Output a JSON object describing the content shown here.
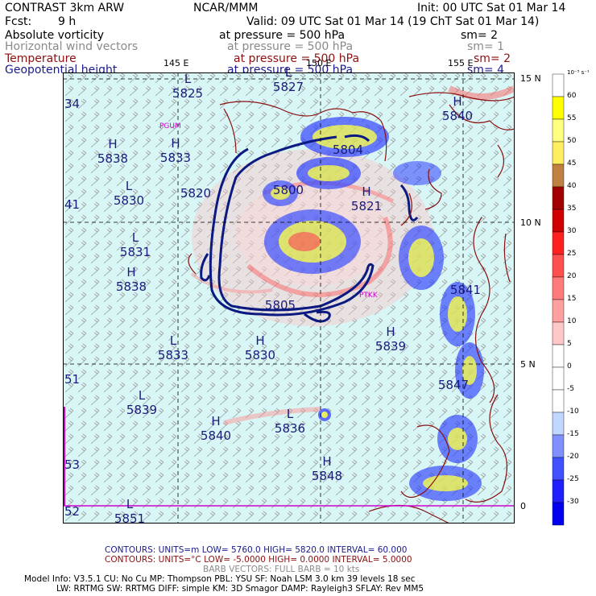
{
  "header": {
    "product": "CONTRAST  3km ARW",
    "center": "NCAR/MMM",
    "init": "Init: 00 UTC Sat 01 Mar 14",
    "fcst_label": "Fcst:",
    "fcst_value": "9 h",
    "valid": "Valid: 09 UTC Sat 01 Mar 14 (19 ChT Sat 01 Mar 14)"
  },
  "fields": [
    {
      "name": "Absolute vorticity",
      "level": "at pressure =  500 hPa",
      "sm": "sm= 2",
      "color": "#000000"
    },
    {
      "name": "Horizontal wind vectors",
      "level": "at pressure =  500 hPa",
      "sm": "sm= 1",
      "color": "#8a8a8a"
    },
    {
      "name": "Temperature",
      "level": "at pressure =  500 hPa",
      "sm": "sm= 2",
      "color": "#8b1010"
    },
    {
      "name": "Geopotential height",
      "level": "at pressure =  500 hPa",
      "sm": "sm= 4",
      "color": "#1a1a8c"
    }
  ],
  "map": {
    "lon_labels": [
      "145 E",
      "150 E",
      "155 E"
    ],
    "lat_labels": [
      "15 N",
      "10 N",
      "5 N",
      "0"
    ],
    "stations": [
      "PGUM",
      "PTKK"
    ],
    "edge_labels": [
      "34",
      "41",
      "51",
      "53",
      "52"
    ],
    "centers": [
      {
        "type": "L",
        "value": "5825"
      },
      {
        "type": "L",
        "value": "5827"
      },
      {
        "type": "H",
        "value": "5838"
      },
      {
        "type": "H",
        "value": "5833"
      },
      {
        "type": "L",
        "value": "5830"
      },
      {
        "type": "",
        "value": "5820"
      },
      {
        "type": "",
        "value": "5800"
      },
      {
        "type": "",
        "value": "5804"
      },
      {
        "type": "H",
        "value": "5821"
      },
      {
        "type": "H",
        "value": "5840"
      },
      {
        "type": "L",
        "value": "5831"
      },
      {
        "type": "H",
        "value": "5838"
      },
      {
        "type": "",
        "value": "5805"
      },
      {
        "type": "L",
        "value": "5833"
      },
      {
        "type": "H",
        "value": "5830"
      },
      {
        "type": "H",
        "value": "5839"
      },
      {
        "type": "L",
        "value": "5839"
      },
      {
        "type": "H",
        "value": "5840"
      },
      {
        "type": "L",
        "value": "5836"
      },
      {
        "type": "H",
        "value": "5848"
      },
      {
        "type": "L",
        "value": "5851"
      },
      {
        "type": "",
        "value": "5841"
      },
      {
        "type": "",
        "value": "5847"
      }
    ]
  },
  "colorbar": {
    "unit": "10⁻⁵ s⁻¹",
    "labels": [
      "60",
      "55",
      "50",
      "45",
      "40",
      "35",
      "30",
      "25",
      "20",
      "15",
      "10",
      "5",
      "0",
      "-5",
      "-10",
      "-15",
      "-20",
      "-25",
      "-30"
    ],
    "colors": [
      "#ffffff",
      "#ffff00",
      "#ffff80",
      "#ffee60",
      "#c08040",
      "#a00000",
      "#d00000",
      "#ff2020",
      "#ff5050",
      "#ff7a7a",
      "#ffa0a0",
      "#ffc8c8",
      "#ffffff",
      "#ffffff",
      "#ffffff",
      "#c0d8ff",
      "#8090ff",
      "#4050ff",
      "#2020ff",
      "#0000ee"
    ]
  },
  "footer": {
    "contours1": "CONTOURS:  UNITS=m  LOW=  5760.0       HIGH=  5820.0       INTERVAL=   60.000",
    "contours2": "CONTOURS:  UNITS=°C  LOW=  -5.0000      HIGH=  0.0000       INTERVAL=   5.0000",
    "barbs": "BARB VECTORS:  FULL BARB = 10 kts",
    "model1": "Model Info: V3.5.1     CU: No Cu     MP: Thompson     PBL: YSU      SF: Noah LSM      3.0 km    39 levels    18 sec",
    "model2": "LW: RRTMG    SW: RRTMG   DIFF: simple KM: 3D Smagor DAMP: Rayleigh3  SFLAY: Rev MM5"
  }
}
